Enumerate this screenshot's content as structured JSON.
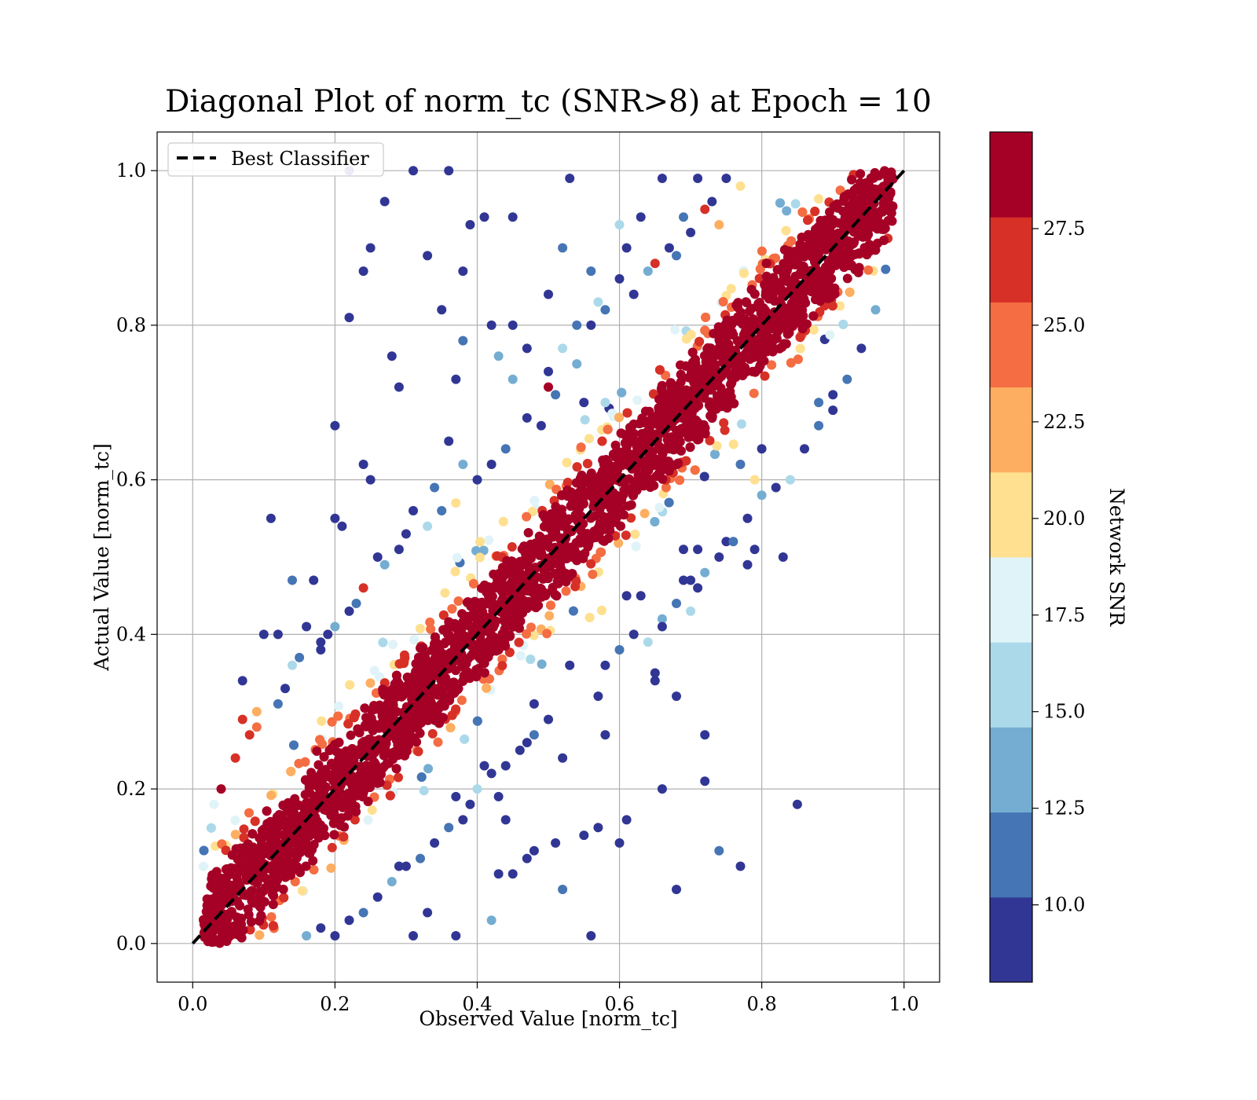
{
  "chart_data": {
    "type": "scatter",
    "title": "Diagonal Plot of norm_tc (SNR>8) at Epoch = 10",
    "xlabel": "Observed Value [norm_tc]",
    "ylabel": "Actual Value [norm_tc]",
    "xlim": [
      -0.05,
      1.05
    ],
    "ylim": [
      -0.05,
      1.05
    ],
    "xticks": [
      "0.0",
      "0.2",
      "0.4",
      "0.6",
      "0.8",
      "1.0"
    ],
    "yticks": [
      "0.0",
      "0.2",
      "0.4",
      "0.6",
      "0.8",
      "1.0"
    ],
    "xtick_values": [
      0.0,
      0.2,
      0.4,
      0.6,
      0.8,
      1.0
    ],
    "ytick_values": [
      0.0,
      0.2,
      0.4,
      0.6,
      0.8,
      1.0
    ],
    "grid": true,
    "legend": {
      "position": "top-left",
      "entries": [
        "Best Classifier"
      ]
    },
    "reference_line": {
      "name": "Best Classifier",
      "style": "dashed",
      "color": "#000000",
      "x": [
        0.0,
        1.0
      ],
      "y": [
        0.0,
        1.0
      ]
    },
    "colorbar": {
      "label": "Network SNR",
      "range": [
        8.0,
        30.0
      ],
      "tick_values": [
        10.0,
        12.5,
        15.0,
        17.5,
        20.0,
        22.5,
        25.0,
        27.5
      ],
      "tick_labels": [
        "10.0",
        "12.5",
        "15.0",
        "17.5",
        "20.0",
        "22.5",
        "25.0",
        "27.5"
      ],
      "colors": [
        "#313695",
        "#4575b4",
        "#74add1",
        "#abd9e9",
        "#e0f3f8",
        "#fee090",
        "#fdae61",
        "#f46d43",
        "#d73027",
        "#a50026"
      ]
    },
    "outlier_points": [
      [
        0.22,
        1.0,
        9
      ],
      [
        0.31,
        1.0,
        9
      ],
      [
        0.36,
        1.0,
        9
      ],
      [
        0.45,
        0.94,
        9
      ],
      [
        0.27,
        0.96,
        9
      ],
      [
        0.25,
        0.9,
        9
      ],
      [
        0.33,
        0.89,
        10
      ],
      [
        0.24,
        0.87,
        9
      ],
      [
        0.41,
        0.94,
        9
      ],
      [
        0.38,
        0.87,
        9
      ],
      [
        0.22,
        0.81,
        9
      ],
      [
        0.35,
        0.82,
        10
      ],
      [
        0.28,
        0.76,
        9
      ],
      [
        0.37,
        0.73,
        9
      ],
      [
        0.29,
        0.72,
        9
      ],
      [
        0.2,
        0.67,
        9
      ],
      [
        0.24,
        0.62,
        10
      ],
      [
        0.25,
        0.6,
        9
      ],
      [
        0.11,
        0.55,
        9
      ],
      [
        0.17,
        0.47,
        10
      ],
      [
        0.2,
        0.55,
        9
      ],
      [
        0.21,
        0.54,
        9
      ],
      [
        0.38,
        0.78,
        12
      ],
      [
        0.43,
        0.76,
        13
      ],
      [
        0.45,
        0.73,
        14
      ],
      [
        0.53,
        0.99,
        9
      ],
      [
        0.52,
        0.9,
        12
      ],
      [
        0.6,
        0.93,
        15
      ],
      [
        0.56,
        0.87,
        12
      ],
      [
        0.5,
        0.84,
        9
      ],
      [
        0.45,
        0.8,
        9
      ],
      [
        0.47,
        0.77,
        10
      ],
      [
        0.42,
        0.8,
        9
      ],
      [
        0.39,
        0.93,
        9
      ],
      [
        0.1,
        0.4,
        9
      ],
      [
        0.12,
        0.4,
        10
      ],
      [
        0.07,
        0.34,
        9
      ],
      [
        0.06,
        0.24,
        27
      ],
      [
        0.04,
        0.2,
        28
      ],
      [
        0.03,
        0.18,
        18
      ],
      [
        0.07,
        0.29,
        26
      ],
      [
        0.09,
        0.28,
        24
      ],
      [
        0.85,
        0.18,
        9
      ],
      [
        0.72,
        0.27,
        9
      ],
      [
        0.72,
        0.21,
        9
      ],
      [
        0.68,
        0.32,
        9
      ],
      [
        0.65,
        0.35,
        9
      ],
      [
        0.65,
        0.34,
        9
      ],
      [
        0.74,
        0.12,
        11
      ],
      [
        0.77,
        0.1,
        9
      ],
      [
        0.68,
        0.07,
        9
      ],
      [
        0.61,
        0.16,
        10
      ],
      [
        0.6,
        0.13,
        9
      ],
      [
        0.57,
        0.15,
        9
      ],
      [
        0.52,
        0.07,
        11
      ],
      [
        0.56,
        0.01,
        9
      ],
      [
        0.51,
        0.13,
        9
      ],
      [
        0.48,
        0.12,
        9
      ],
      [
        0.47,
        0.11,
        9
      ],
      [
        0.45,
        0.09,
        9
      ],
      [
        0.43,
        0.09,
        9
      ],
      [
        0.42,
        0.03,
        13
      ],
      [
        0.37,
        0.01,
        9
      ],
      [
        0.33,
        0.04,
        9
      ],
      [
        0.31,
        0.01,
        9
      ],
      [
        0.29,
        0.1,
        9
      ],
      [
        0.37,
        0.19,
        9
      ],
      [
        0.43,
        0.19,
        9
      ],
      [
        0.41,
        0.23,
        9
      ],
      [
        0.39,
        0.18,
        9
      ],
      [
        0.47,
        0.26,
        9
      ],
      [
        0.52,
        0.24,
        9
      ],
      [
        0.48,
        0.31,
        9
      ],
      [
        0.53,
        0.36,
        9
      ],
      [
        0.57,
        0.32,
        9
      ],
      [
        0.7,
        0.43,
        15
      ],
      [
        0.71,
        0.46,
        9
      ],
      [
        0.69,
        0.51,
        9
      ],
      [
        0.75,
        0.52,
        9
      ],
      [
        0.78,
        0.49,
        9
      ],
      [
        0.79,
        0.51,
        9
      ],
      [
        0.83,
        0.5,
        9
      ],
      [
        0.79,
        0.6,
        21
      ],
      [
        0.8,
        0.64,
        9
      ],
      [
        0.77,
        0.62,
        12
      ],
      [
        0.9,
        0.69,
        9
      ],
      [
        0.88,
        0.7,
        12
      ],
      [
        0.66,
        0.2,
        9
      ],
      [
        0.63,
        0.45,
        9
      ],
      [
        0.61,
        0.45,
        9
      ],
      [
        0.58,
        0.27,
        9
      ],
      [
        0.71,
        0.51,
        9
      ],
      [
        0.66,
        0.42,
        13
      ],
      [
        0.69,
        0.47,
        9
      ],
      [
        0.44,
        0.16,
        9
      ],
      [
        0.55,
        0.14,
        9
      ],
      [
        0.12,
        0.31,
        11
      ],
      [
        0.15,
        0.37,
        12
      ],
      [
        0.14,
        0.36,
        16
      ],
      [
        0.16,
        0.41,
        9
      ],
      [
        0.13,
        0.33,
        9
      ],
      [
        0.14,
        0.47,
        11
      ],
      [
        0.18,
        0.39,
        10
      ],
      [
        0.09,
        0.3,
        23
      ],
      [
        0.08,
        0.27,
        27
      ],
      [
        0.47,
        0.68,
        9
      ],
      [
        0.49,
        0.67,
        9
      ],
      [
        0.51,
        0.71,
        11
      ],
      [
        0.55,
        0.7,
        9
      ],
      [
        0.58,
        0.7,
        16
      ],
      [
        0.54,
        0.75,
        13
      ],
      [
        0.58,
        0.82,
        12
      ],
      [
        0.61,
        0.9,
        9
      ],
      [
        0.63,
        0.94,
        9
      ],
      [
        0.66,
        0.99,
        9
      ],
      [
        0.69,
        0.94,
        11
      ],
      [
        0.71,
        0.99,
        9
      ],
      [
        0.73,
        0.96,
        9
      ],
      [
        0.75,
        0.99,
        10
      ],
      [
        0.77,
        0.98,
        20
      ],
      [
        0.65,
        0.88,
        27
      ],
      [
        0.67,
        0.9,
        9
      ],
      [
        0.7,
        0.92,
        9
      ],
      [
        0.72,
        0.95,
        26
      ],
      [
        0.74,
        0.93,
        22
      ],
      [
        0.6,
        0.86,
        10
      ],
      [
        0.62,
        0.84,
        9
      ],
      [
        0.64,
        0.87,
        14
      ],
      [
        0.68,
        0.89,
        12
      ],
      [
        0.56,
        0.8,
        9
      ],
      [
        0.54,
        0.8,
        11
      ],
      [
        0.57,
        0.83,
        15
      ],
      [
        0.5,
        0.72,
        28
      ],
      [
        0.5,
        0.74,
        9
      ],
      [
        0.52,
        0.77,
        16
      ],
      [
        0.42,
        0.62,
        9
      ],
      [
        0.44,
        0.64,
        12
      ],
      [
        0.4,
        0.6,
        9
      ],
      [
        0.38,
        0.62,
        14
      ],
      [
        0.36,
        0.65,
        9
      ],
      [
        0.34,
        0.59,
        11
      ],
      [
        0.37,
        0.57,
        20
      ],
      [
        0.31,
        0.56,
        9
      ],
      [
        0.33,
        0.54,
        15
      ],
      [
        0.35,
        0.56,
        12
      ],
      [
        0.29,
        0.51,
        9
      ],
      [
        0.3,
        0.53,
        10
      ],
      [
        0.27,
        0.49,
        13
      ],
      [
        0.26,
        0.5,
        9
      ],
      [
        0.24,
        0.46,
        26
      ],
      [
        0.23,
        0.44,
        11
      ],
      [
        0.22,
        0.43,
        9
      ],
      [
        0.2,
        0.41,
        14
      ],
      [
        0.19,
        0.4,
        9
      ],
      [
        0.18,
        0.38,
        10
      ],
      [
        0.58,
        0.36,
        9
      ],
      [
        0.6,
        0.38,
        11
      ],
      [
        0.62,
        0.4,
        9
      ],
      [
        0.64,
        0.39,
        15
      ],
      [
        0.66,
        0.41,
        9
      ],
      [
        0.68,
        0.44,
        12
      ],
      [
        0.7,
        0.47,
        9
      ],
      [
        0.72,
        0.48,
        13
      ],
      [
        0.74,
        0.5,
        9
      ],
      [
        0.76,
        0.52,
        11
      ],
      [
        0.78,
        0.55,
        9
      ],
      [
        0.8,
        0.58,
        14
      ],
      [
        0.82,
        0.59,
        9
      ],
      [
        0.84,
        0.6,
        16
      ],
      [
        0.86,
        0.64,
        9
      ],
      [
        0.88,
        0.67,
        12
      ],
      [
        0.9,
        0.71,
        9
      ],
      [
        0.92,
        0.73,
        11
      ],
      [
        0.94,
        0.77,
        9
      ],
      [
        0.96,
        0.82,
        13
      ],
      [
        0.5,
        0.29,
        9
      ],
      [
        0.48,
        0.27,
        12
      ],
      [
        0.46,
        0.25,
        9
      ],
      [
        0.44,
        0.23,
        10
      ],
      [
        0.42,
        0.22,
        9
      ],
      [
        0.4,
        0.2,
        15
      ],
      [
        0.38,
        0.16,
        9
      ],
      [
        0.36,
        0.15,
        12
      ],
      [
        0.34,
        0.13,
        9
      ],
      [
        0.32,
        0.11,
        11
      ],
      [
        0.3,
        0.1,
        9
      ],
      [
        0.28,
        0.08,
        14
      ],
      [
        0.26,
        0.06,
        9
      ],
      [
        0.24,
        0.04,
        12
      ],
      [
        0.22,
        0.03,
        9
      ],
      [
        0.2,
        0.01,
        10
      ],
      [
        0.18,
        0.02,
        9
      ],
      [
        0.16,
        0.01,
        13
      ]
    ]
  }
}
